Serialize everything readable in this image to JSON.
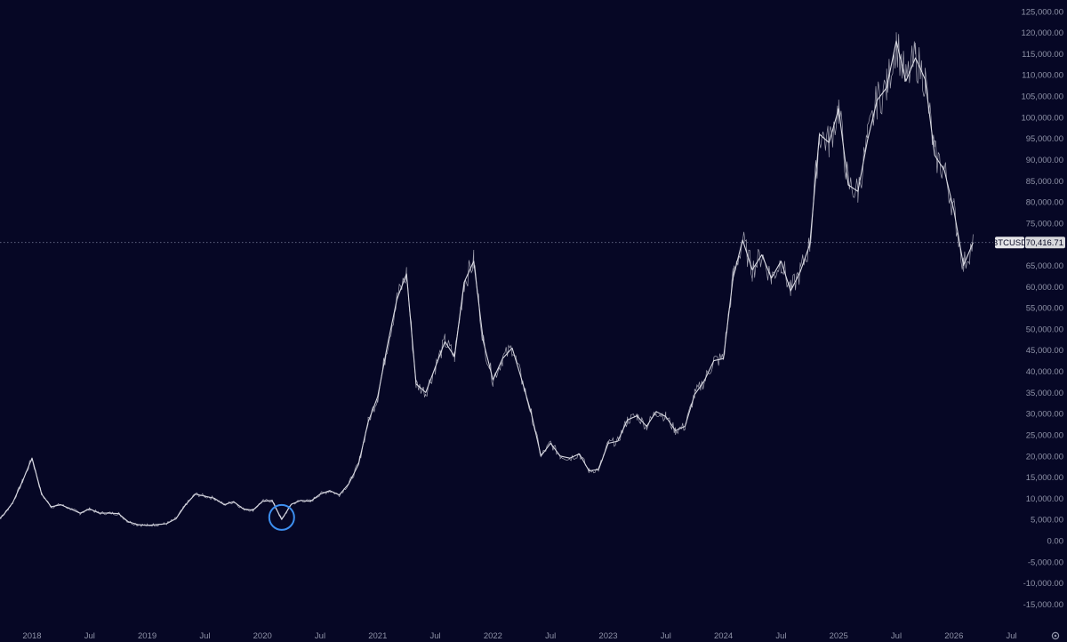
{
  "chart_data": {
    "type": "line",
    "title": "",
    "xlabel": "",
    "ylabel": "",
    "ylim": [
      -17000,
      126000
    ],
    "grid": false,
    "colors": {
      "background": "#060725",
      "line": "#d9dae3",
      "tick_text": "#8f93a8",
      "price_line": "#6f7390",
      "highlight_circle": "#3d8ff0",
      "symbol_badge_bg": "#e6e6ea",
      "symbol_badge_text": "#0a0b25",
      "price_badge_bg": "#d7d8dc",
      "price_badge_text": "#0a0b25"
    },
    "y_ticks": [
      {
        "value": 125000,
        "label": "125,000.00"
      },
      {
        "value": 120000,
        "label": "120,000.00"
      },
      {
        "value": 115000,
        "label": "115,000.00"
      },
      {
        "value": 110000,
        "label": "110,000.00"
      },
      {
        "value": 105000,
        "label": "105,000.00"
      },
      {
        "value": 100000,
        "label": "100,000.00"
      },
      {
        "value": 95000,
        "label": "95,000.00"
      },
      {
        "value": 90000,
        "label": "90,000.00"
      },
      {
        "value": 85000,
        "label": "85,000.00"
      },
      {
        "value": 80000,
        "label": "80,000.00"
      },
      {
        "value": 75000,
        "label": "75,000.00"
      },
      {
        "value": 65000,
        "label": "65,000.00"
      },
      {
        "value": 60000,
        "label": "60,000.00"
      },
      {
        "value": 55000,
        "label": "55,000.00"
      },
      {
        "value": 50000,
        "label": "50,000.00"
      },
      {
        "value": 45000,
        "label": "45,000.00"
      },
      {
        "value": 40000,
        "label": "40,000.00"
      },
      {
        "value": 35000,
        "label": "35,000.00"
      },
      {
        "value": 30000,
        "label": "30,000.00"
      },
      {
        "value": 25000,
        "label": "25,000.00"
      },
      {
        "value": 20000,
        "label": "20,000.00"
      },
      {
        "value": 15000,
        "label": "15,000.00"
      },
      {
        "value": 10000,
        "label": "10,000.00"
      },
      {
        "value": 5000,
        "label": "5,000.00"
      },
      {
        "value": 0,
        "label": "0.00"
      },
      {
        "value": -5000,
        "label": "-5,000.00"
      },
      {
        "value": -10000,
        "label": "-10,000.00"
      },
      {
        "value": -15000,
        "label": "-15,000.00"
      }
    ],
    "x_ticks": [
      {
        "date": "2018-01",
        "label": "2018"
      },
      {
        "date": "2018-07",
        "label": "Jul"
      },
      {
        "date": "2019-01",
        "label": "2019"
      },
      {
        "date": "2019-07",
        "label": "Jul"
      },
      {
        "date": "2020-01",
        "label": "2020"
      },
      {
        "date": "2020-07",
        "label": "Jul"
      },
      {
        "date": "2021-01",
        "label": "2021"
      },
      {
        "date": "2021-07",
        "label": "Jul"
      },
      {
        "date": "2022-01",
        "label": "2022"
      },
      {
        "date": "2022-07",
        "label": "Jul"
      },
      {
        "date": "2023-01",
        "label": "2023"
      },
      {
        "date": "2023-07",
        "label": "Jul"
      },
      {
        "date": "2024-01",
        "label": "2024"
      },
      {
        "date": "2024-07",
        "label": "Jul"
      },
      {
        "date": "2025-01",
        "label": "2025"
      },
      {
        "date": "2025-07",
        "label": "Jul"
      },
      {
        "date": "2026-01",
        "label": "2026"
      },
      {
        "date": "2026-07",
        "label": "Jul"
      }
    ],
    "series": [
      {
        "name": "BTCUSD",
        "x": [
          "2017-09",
          "2017-10",
          "2017-11",
          "2017-12",
          "2018-01",
          "2018-02",
          "2018-03",
          "2018-04",
          "2018-05",
          "2018-06",
          "2018-07",
          "2018-08",
          "2018-09",
          "2018-10",
          "2018-11",
          "2018-12",
          "2019-01",
          "2019-02",
          "2019-03",
          "2019-04",
          "2019-05",
          "2019-06",
          "2019-07",
          "2019-08",
          "2019-09",
          "2019-10",
          "2019-11",
          "2019-12",
          "2020-01",
          "2020-02",
          "2020-03",
          "2020-04",
          "2020-05",
          "2020-06",
          "2020-07",
          "2020-08",
          "2020-09",
          "2020-10",
          "2020-11",
          "2020-12",
          "2021-01",
          "2021-02",
          "2021-03",
          "2021-04",
          "2021-05",
          "2021-06",
          "2021-07",
          "2021-08",
          "2021-09",
          "2021-10",
          "2021-11",
          "2021-12",
          "2022-01",
          "2022-02",
          "2022-03",
          "2022-04",
          "2022-05",
          "2022-06",
          "2022-07",
          "2022-08",
          "2022-09",
          "2022-10",
          "2022-11",
          "2022-12",
          "2023-01",
          "2023-02",
          "2023-03",
          "2023-04",
          "2023-05",
          "2023-06",
          "2023-07",
          "2023-08",
          "2023-09",
          "2023-10",
          "2023-11",
          "2023-12",
          "2024-01",
          "2024-02",
          "2024-03",
          "2024-04",
          "2024-05",
          "2024-06",
          "2024-07",
          "2024-08",
          "2024-09",
          "2024-10",
          "2024-11",
          "2024-12",
          "2025-01",
          "2025-02",
          "2025-03",
          "2025-04",
          "2025-05",
          "2025-06",
          "2025-07",
          "2025-08",
          "2025-09",
          "2025-10",
          "2025-11",
          "2025-12",
          "2026-01",
          "2026-02",
          "2026-03"
        ],
        "values": [
          4000,
          6000,
          9000,
          14000,
          19500,
          11000,
          8000,
          8500,
          7500,
          6500,
          7500,
          6500,
          6500,
          6400,
          4500,
          3800,
          3600,
          3800,
          4000,
          5200,
          8500,
          11000,
          10500,
          10000,
          8500,
          9200,
          7500,
          7200,
          9300,
          9500,
          5000,
          8600,
          9500,
          9300,
          11000,
          11800,
          10800,
          13500,
          18000,
          28000,
          34000,
          46000,
          57000,
          63000,
          37000,
          35000,
          41000,
          47000,
          43500,
          61000,
          66000,
          47000,
          38000,
          43000,
          45500,
          38000,
          30000,
          20000,
          23000,
          20000,
          19500,
          20500,
          16500,
          16800,
          23000,
          23500,
          28500,
          29500,
          27000,
          30500,
          29300,
          26000,
          27000,
          34500,
          37700,
          42500,
          43000,
          62000,
          71000,
          64000,
          67500,
          62000,
          66000,
          59000,
          63500,
          70000,
          96000,
          94000,
          102000,
          84000,
          82500,
          94500,
          104000,
          107000,
          118000,
          108500,
          114000,
          109000,
          91000,
          87500,
          78000,
          65000,
          70416.71
        ]
      }
    ],
    "price_label": {
      "symbol": "BTCUSD",
      "value": 70416.71,
      "text": "70,416.71"
    },
    "annotation": {
      "type": "circle",
      "date": "2020-03",
      "value": 5500
    }
  }
}
